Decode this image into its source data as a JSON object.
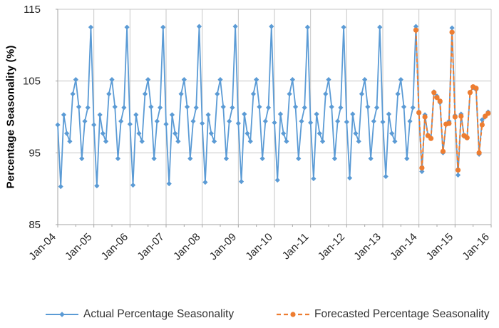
{
  "chart_data": {
    "type": "line",
    "title": "",
    "ylabel": "Percentage Seasonality (%)",
    "xlabel": "",
    "ylim": [
      85,
      115
    ],
    "yticks": [
      85,
      95,
      105,
      115
    ],
    "x_tick_labels": [
      "Jan-04",
      "Jan-05",
      "Jan-06",
      "Jan-07",
      "Jan-08",
      "Jan-09",
      "Jan-10",
      "Jan-11",
      "Jan-12",
      "Jan-13",
      "Jan-14",
      "Jan-15",
      "Jan-16"
    ],
    "x_total_points": 144,
    "grid": "vertical-yearly and horizontal at yticks",
    "legend_position": "bottom",
    "colors": {
      "actual": "#5B9BD5",
      "forecast": "#ED7D31",
      "gridline": "#C6C6C6",
      "axis": "#A6A6A6",
      "tick_text": "#262626",
      "legend_text": "#333333"
    },
    "series": [
      {
        "name": "Actual Percentage Seasonality",
        "color": "#5B9BD5",
        "line_style": "solid",
        "marker": "diamond",
        "start_index": 0,
        "values": [
          98.9,
          90.3,
          100.3,
          97.7,
          96.6,
          103.2,
          105.2,
          101.4,
          94.2,
          99.4,
          101.3,
          112.5,
          98.9,
          90.4,
          100.3,
          97.7,
          96.6,
          103.2,
          105.2,
          101.4,
          94.2,
          99.4,
          101.3,
          112.5,
          99.0,
          90.5,
          100.3,
          97.7,
          96.6,
          103.2,
          105.2,
          101.4,
          94.2,
          99.4,
          101.3,
          112.5,
          99.0,
          90.7,
          100.3,
          97.7,
          96.6,
          103.2,
          105.2,
          101.4,
          94.2,
          99.4,
          101.3,
          112.6,
          99.1,
          90.9,
          100.3,
          97.7,
          96.6,
          103.2,
          105.2,
          101.4,
          94.2,
          99.4,
          101.3,
          112.6,
          99.1,
          91.0,
          100.4,
          97.7,
          96.6,
          103.2,
          105.2,
          101.4,
          94.2,
          99.4,
          101.3,
          112.6,
          99.2,
          91.2,
          100.4,
          97.7,
          96.6,
          103.2,
          105.2,
          101.4,
          94.2,
          99.4,
          101.3,
          112.5,
          99.2,
          91.4,
          100.4,
          97.7,
          96.6,
          103.2,
          105.2,
          101.4,
          94.2,
          99.4,
          101.3,
          112.5,
          99.3,
          91.5,
          100.4,
          97.7,
          96.6,
          103.2,
          105.2,
          101.4,
          94.2,
          99.4,
          101.3,
          112.5,
          99.3,
          91.7,
          100.4,
          97.7,
          96.6,
          103.2,
          105.2,
          101.4,
          94.2,
          99.4,
          101.3,
          112.6,
          100.5,
          92.4,
          100.3,
          97.4,
          97.0,
          103.5,
          102.9,
          102.0,
          95.0,
          99.0,
          99.4,
          112.4,
          100.2,
          91.9,
          100.4,
          97.3,
          97.1,
          103.4,
          104.1,
          103.8,
          94.8,
          99.6,
          100.0,
          100.7
        ]
      },
      {
        "name": "Forecasted Percentage Seasonality",
        "color": "#ED7D31",
        "line_style": "dashed",
        "marker": "circle",
        "start_index": 119,
        "values": [
          112.1,
          100.6,
          92.9,
          100.0,
          97.4,
          97.0,
          103.4,
          102.7,
          102.2,
          95.2,
          99.0,
          99.1,
          111.8,
          100.0,
          92.6,
          100.1,
          97.4,
          97.1,
          103.4,
          104.2,
          104.0,
          95.0,
          98.9,
          100.1,
          100.5
        ]
      }
    ]
  }
}
